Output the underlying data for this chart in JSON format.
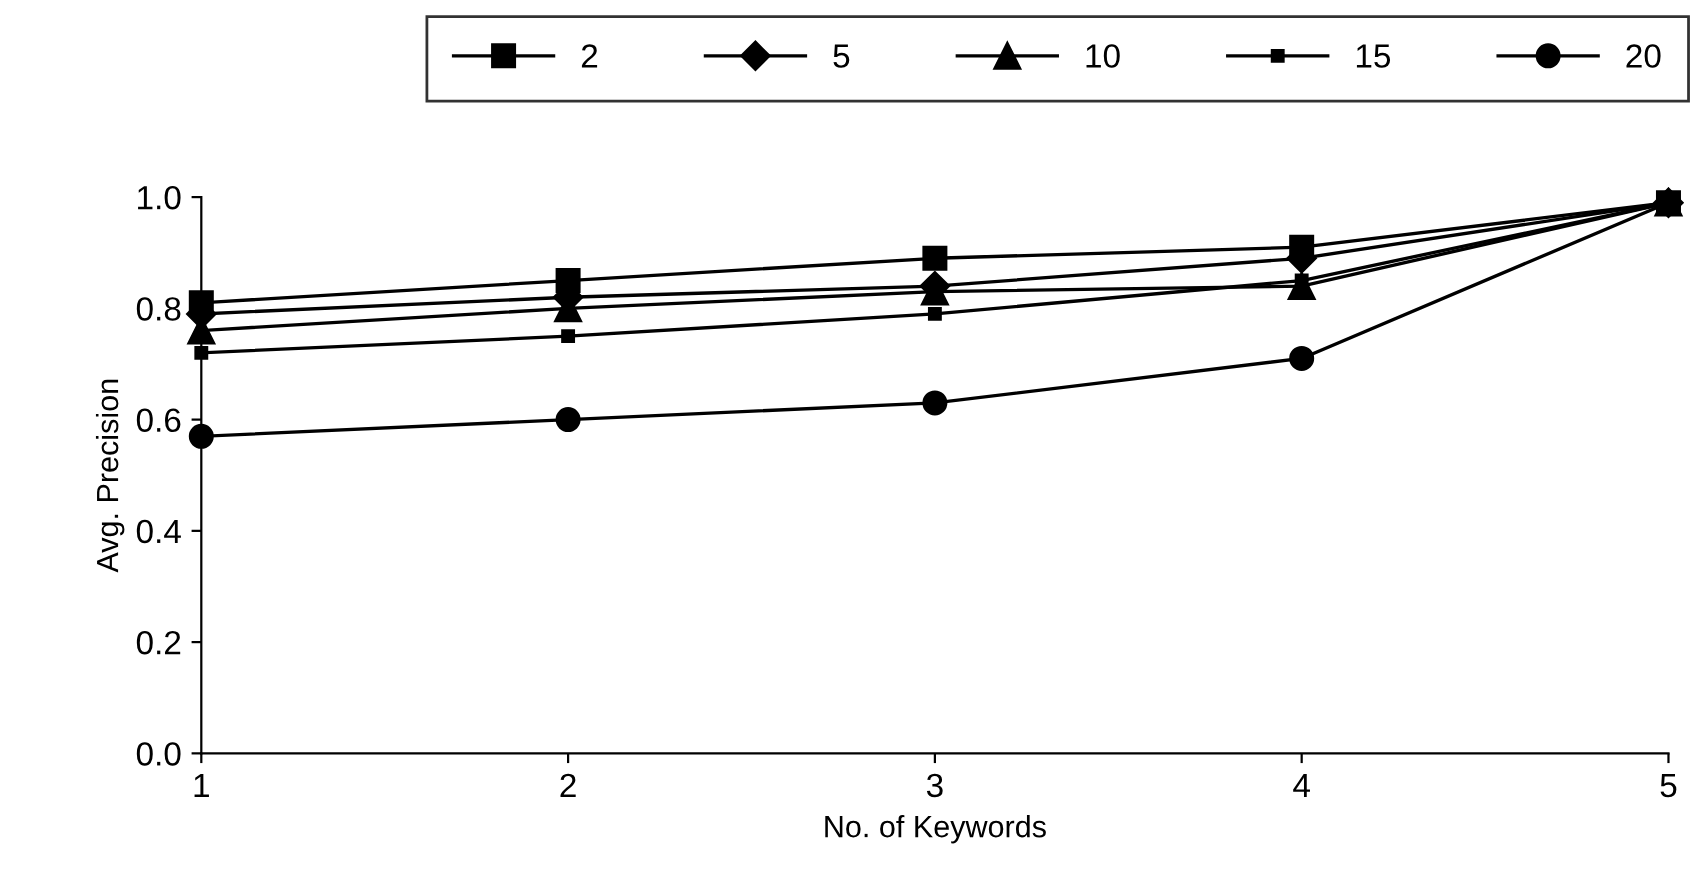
{
  "chart_data": {
    "type": "line",
    "xlabel": "No. of Keywords",
    "ylabel": "Avg. Precision",
    "x": [
      1,
      2,
      3,
      4,
      5
    ],
    "xlim": [
      1,
      5
    ],
    "xticks": [
      1,
      2,
      3,
      4,
      5
    ],
    "ylim": [
      0,
      1
    ],
    "yticks": [
      {
        "value": 0,
        "label": "0.0"
      },
      {
        "value": 0.2,
        "label": "0.2"
      },
      {
        "value": 0.4,
        "label": "0.4"
      },
      {
        "value": 0.6,
        "label": "0.6"
      },
      {
        "value": 0.8,
        "label": "0.8"
      },
      {
        "value": 1,
        "label": "1.0"
      }
    ],
    "grid": false,
    "legend": "top",
    "line_style": "solid",
    "series": [
      {
        "name": "2",
        "color": "#000000",
        "marker": "square",
        "values": [
          0.81,
          0.85,
          0.89,
          0.91,
          0.99
        ]
      },
      {
        "name": "5",
        "color": "#000000",
        "marker": "diamond",
        "values": [
          0.79,
          0.82,
          0.84,
          0.89,
          0.99
        ]
      },
      {
        "name": "10",
        "color": "#000000",
        "marker": "triangle",
        "values": [
          0.76,
          0.8,
          0.83,
          0.84,
          0.99
        ]
      },
      {
        "name": "15",
        "color": "#000000",
        "marker": "square",
        "values": [
          0.72,
          0.75,
          0.79,
          0.85,
          0.99
        ]
      },
      {
        "name": "20",
        "color": "#000000",
        "marker": "circle",
        "values": [
          0.57,
          0.6,
          0.63,
          0.71,
          0.99
        ]
      }
    ]
  }
}
